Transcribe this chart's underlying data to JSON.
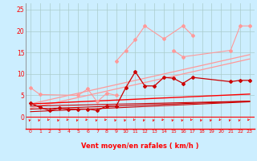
{
  "xlabel": "Vent moyen/en rafales ( km/h )",
  "bg_color": "#cceeff",
  "grid_color": "#aacccc",
  "x_values": [
    0,
    1,
    2,
    3,
    4,
    5,
    6,
    7,
    8,
    9,
    10,
    11,
    12,
    13,
    14,
    15,
    16,
    17,
    18,
    19,
    20,
    21,
    22,
    23
  ],
  "xlim": [
    -0.5,
    23.5
  ],
  "ylim": [
    -2.8,
    26.5
  ],
  "yticks": [
    0,
    5,
    10,
    15,
    20,
    25
  ],
  "xticks": [
    0,
    1,
    2,
    3,
    4,
    5,
    6,
    7,
    8,
    9,
    10,
    11,
    12,
    13,
    14,
    15,
    16,
    17,
    18,
    19,
    20,
    21,
    22,
    23
  ],
  "pink_line1": [
    3.0,
    3.5,
    4.0,
    4.5,
    5.0,
    5.5,
    6.0,
    6.5,
    7.0,
    7.5,
    8.0,
    8.5,
    9.0,
    9.5,
    10.0,
    10.5,
    11.0,
    11.5,
    12.0,
    12.5,
    13.0,
    13.5,
    14.0,
    14.5
  ],
  "pink_line2": [
    2.0,
    2.5,
    3.0,
    3.5,
    4.0,
    4.5,
    5.0,
    5.5,
    6.0,
    6.5,
    7.0,
    7.5,
    8.0,
    8.5,
    9.0,
    9.5,
    10.0,
    10.5,
    11.0,
    11.5,
    12.0,
    12.5,
    13.0,
    13.5
  ],
  "pink_scatter1_x": [
    0,
    1,
    5,
    6,
    7,
    8,
    9
  ],
  "pink_scatter1_y": [
    6.8,
    5.2,
    5.0,
    6.5,
    3.5,
    5.5,
    5.0
  ],
  "pink_scatter2_x": [
    9,
    10,
    11,
    12,
    14,
    16,
    17
  ],
  "pink_scatter2_y": [
    13.0,
    15.5,
    18.0,
    21.2,
    18.2,
    21.2,
    19.0
  ],
  "pink_scatter3_x": [
    15,
    16,
    21,
    22,
    23
  ],
  "pink_scatter3_y": [
    15.5,
    14.0,
    15.5,
    21.2,
    21.2
  ],
  "red_scatter_x": [
    0,
    1,
    2,
    3,
    4,
    5,
    6,
    7,
    8,
    9,
    10,
    11,
    12,
    13,
    14,
    15,
    16,
    17,
    21,
    22,
    23
  ],
  "red_scatter_y": [
    3.2,
    2.2,
    1.5,
    2.0,
    1.8,
    1.8,
    1.8,
    1.5,
    2.5,
    2.5,
    6.8,
    10.5,
    7.2,
    7.2,
    9.2,
    9.0,
    7.8,
    9.2,
    8.2,
    8.5,
    8.5
  ],
  "dark_line1": [
    2.5,
    2.55,
    2.6,
    2.65,
    2.7,
    2.75,
    2.8,
    2.85,
    2.9,
    2.95,
    3.0,
    3.05,
    3.1,
    3.15,
    3.2,
    3.25,
    3.3,
    3.35,
    3.4,
    3.45,
    3.5,
    3.55,
    3.6,
    3.65
  ],
  "dark_line2": [
    1.8,
    1.88,
    1.96,
    2.04,
    2.12,
    2.2,
    2.28,
    2.36,
    2.44,
    2.52,
    2.6,
    2.68,
    2.76,
    2.84,
    2.92,
    3.0,
    3.08,
    3.16,
    3.24,
    3.32,
    3.4,
    3.48,
    3.56,
    3.64
  ],
  "dark_line3": [
    1.2,
    1.3,
    1.4,
    1.5,
    1.6,
    1.7,
    1.8,
    1.9,
    2.0,
    2.1,
    2.2,
    2.3,
    2.4,
    2.5,
    2.6,
    2.7,
    2.8,
    2.9,
    3.0,
    3.1,
    3.2,
    3.3,
    3.4,
    3.5
  ],
  "red_main_line": [
    3.0,
    3.1,
    3.2,
    3.3,
    3.4,
    3.5,
    3.6,
    3.7,
    3.8,
    3.9,
    4.0,
    4.1,
    4.2,
    4.3,
    4.4,
    4.5,
    4.6,
    4.7,
    4.8,
    4.9,
    5.0,
    5.1,
    5.2,
    5.3
  ],
  "arrow_angles_deg": [
    -45,
    -50,
    -90,
    -45,
    -90,
    -50,
    -90,
    -45,
    -90,
    -50,
    -45,
    -90,
    -50,
    -45,
    -90,
    -50,
    -45,
    -90,
    -50,
    -45,
    -90,
    -50,
    -45,
    -90
  ]
}
